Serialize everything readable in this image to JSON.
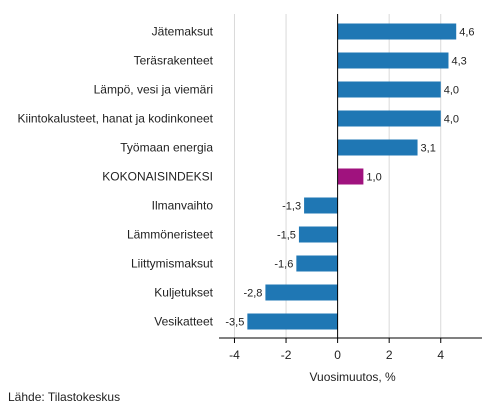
{
  "chart_data": {
    "type": "bar",
    "orientation": "horizontal",
    "categories": [
      "Jätemaksut",
      "Teräsrakenteet",
      "Lämpö, vesi ja viemäri",
      "Kiintokalusteet, hanat ja kodinkoneet",
      "Työmaan energia",
      "KOKONAISINDEKSI",
      "Ilmanvaihto",
      "Lämmöneristeet",
      "Liittymismaksut",
      "Kuljetukset",
      "Vesikatteet"
    ],
    "values": [
      4.6,
      4.3,
      4.0,
      4.0,
      3.1,
      1.0,
      -1.3,
      -1.5,
      -1.6,
      -2.8,
      -3.5
    ],
    "value_labels": [
      "4,6",
      "4,3",
      "4,0",
      "4,0",
      "3,1",
      "1,0",
      "-1,3",
      "-1,5",
      "-1,6",
      "-2,8",
      "-3,5"
    ],
    "highlight_category": "KOKONAISINDEKSI",
    "xlabel": "Vuosimuutos, %",
    "xlim": [
      -4.6,
      5.6
    ],
    "xticks": [
      -4,
      -2,
      0,
      2,
      4
    ],
    "xtick_labels": [
      "-4",
      "-2",
      "0",
      "2",
      "4"
    ],
    "grid": "vertical",
    "colors": {
      "bar": "#1f77b4",
      "highlight": "#a0127e",
      "grid": "#d9d9d9"
    }
  },
  "footer": {
    "source": "Lähde: Tilastokeskus"
  }
}
